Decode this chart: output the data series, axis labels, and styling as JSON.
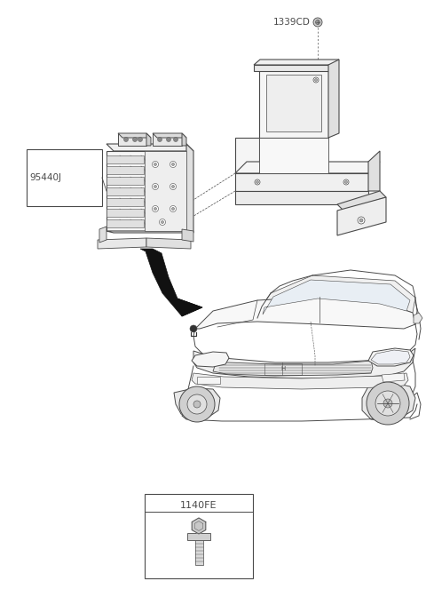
{
  "bg_color": "#ffffff",
  "line_color": "#4a4a4a",
  "label_1339CD": "1339CD",
  "label_95440J": "95440J",
  "label_1140FE": "1140FE",
  "fig_width": 4.8,
  "fig_height": 6.81,
  "dpi": 100
}
